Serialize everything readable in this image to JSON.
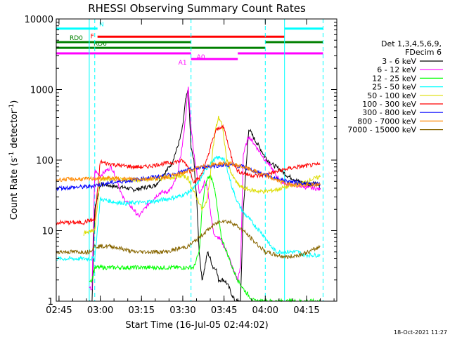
{
  "chart_data": {
    "type": "line",
    "title": "RHESSI Observing Summary Count Rates",
    "xlabel": "Start Time (16-Jul-05 02:44:02)",
    "ylabel_main": "Count Rate (s",
    "ylabel_sup1": "-1",
    "ylabel_mid": " detector",
    "ylabel_sup2": "-1",
    "ylabel_end": ")",
    "x_unit": "minutes since 02:44:02",
    "xlim": [
      0,
      102
    ],
    "ylim": [
      1,
      10000
    ],
    "yscale": "log",
    "x_ticks": [
      {
        "label": "02:45",
        "t": 1
      },
      {
        "label": "03:00",
        "t": 16
      },
      {
        "label": "03:15",
        "t": 31
      },
      {
        "label": "03:30",
        "t": 46
      },
      {
        "label": "03:45",
        "t": 61
      },
      {
        "label": "04:00",
        "t": 76
      },
      {
        "label": "04:15",
        "t": 91
      }
    ],
    "y_ticks": [
      {
        "label": "1",
        "v": 1
      },
      {
        "label": "10",
        "v": 10
      },
      {
        "label": "100",
        "v": 100
      },
      {
        "label": "1000",
        "v": 1000
      },
      {
        "label": "10000",
        "v": 10000
      }
    ],
    "legend_header": [
      "Det 1,3,4,5,6,9,",
      "FDecim 6"
    ],
    "series": [
      {
        "name": "3 - 6 keV",
        "color": "#000000",
        "x": [
          12,
          13,
          14,
          16,
          18,
          20,
          22,
          24,
          26,
          28,
          30,
          32,
          34,
          36,
          38,
          40,
          42,
          44,
          45,
          46,
          47,
          48,
          49,
          50,
          51,
          52,
          53,
          54,
          55,
          56,
          57,
          58,
          59,
          60,
          61,
          62,
          63,
          64,
          65,
          66,
          67,
          68,
          70,
          72,
          74,
          76,
          78,
          80,
          82,
          84,
          86,
          88,
          90,
          92,
          93,
          94,
          95,
          96
        ],
        "y": [
          1,
          1,
          20,
          45,
          45,
          43,
          42,
          41,
          40,
          38,
          39,
          41,
          42,
          44,
          55,
          70,
          90,
          150,
          200,
          300,
          700,
          1000,
          150,
          100,
          30,
          5,
          2,
          3,
          5,
          4,
          3,
          3,
          2,
          2,
          2,
          1.8,
          1.5,
          1.2,
          1,
          1,
          1,
          20,
          280,
          200,
          150,
          110,
          90,
          80,
          70,
          60,
          55,
          50,
          48,
          45,
          45,
          50,
          45,
          40
        ]
      },
      {
        "name": "6 - 12 keV",
        "color": "#ff00ff",
        "x": [
          12,
          13,
          14,
          16,
          18,
          20,
          22,
          24,
          26,
          28,
          30,
          32,
          34,
          36,
          38,
          40,
          42,
          44,
          45,
          46,
          47,
          48,
          49,
          50,
          51,
          52,
          53,
          54,
          55,
          56,
          57,
          58,
          59,
          60,
          61,
          62,
          63,
          64,
          65,
          66,
          67,
          68,
          70,
          72,
          74,
          76,
          78,
          80,
          82,
          84,
          86,
          88,
          90,
          92,
          94,
          96
        ],
        "y": [
          1.5,
          1.5,
          70,
          60,
          70,
          80,
          55,
          30,
          25,
          20,
          16,
          20,
          25,
          30,
          35,
          35,
          40,
          60,
          100,
          180,
          400,
          1100,
          300,
          130,
          70,
          35,
          40,
          50,
          40,
          20,
          10,
          8,
          8,
          7,
          6,
          5,
          4,
          3,
          2.5,
          2,
          3,
          120,
          220,
          170,
          130,
          100,
          80,
          60,
          50,
          45,
          45,
          43,
          42,
          40,
          40,
          38
        ]
      },
      {
        "name": "12 - 25 keV",
        "color": "#00ff00",
        "x": [
          12,
          13,
          14,
          16,
          18,
          20,
          22,
          24,
          26,
          28,
          30,
          32,
          34,
          36,
          38,
          40,
          42,
          44,
          46,
          48,
          50,
          52,
          53,
          54,
          55,
          56,
          57,
          58,
          59,
          60,
          62,
          64,
          66,
          68,
          70,
          72,
          74,
          76,
          78,
          80,
          82,
          84,
          86,
          88,
          90,
          92,
          94,
          96
        ],
        "y": [
          2,
          2,
          3,
          3,
          3,
          3,
          3,
          3,
          3,
          3,
          3,
          3,
          3,
          3,
          3,
          3,
          3,
          3,
          3,
          3,
          3,
          5,
          20,
          40,
          55,
          60,
          50,
          30,
          15,
          8,
          5,
          3,
          2,
          1.5,
          1.2,
          1,
          1,
          1,
          1,
          1,
          1,
          1,
          1,
          1,
          1,
          1,
          1,
          1
        ]
      },
      {
        "name": "25 - 50 keV",
        "color": "#00ffff",
        "x": [
          0,
          10,
          12,
          14,
          16,
          18,
          20,
          22,
          24,
          26,
          28,
          30,
          32,
          34,
          36,
          38,
          40,
          42,
          44,
          46,
          48,
          50,
          52,
          54,
          56,
          58,
          60,
          61,
          62,
          64,
          66,
          68,
          70,
          72,
          74,
          76,
          78,
          80,
          82,
          84,
          86,
          88,
          90,
          92,
          94,
          96
        ],
        "y": [
          4,
          4,
          4,
          4,
          28,
          27,
          26,
          25,
          25,
          24,
          25,
          25,
          25,
          26,
          26,
          27,
          28,
          29,
          30,
          32,
          35,
          40,
          50,
          70,
          90,
          105,
          110,
          100,
          80,
          40,
          25,
          18,
          15,
          12,
          10,
          8,
          6,
          5,
          5,
          5,
          5,
          5,
          4.5,
          4.5,
          4.5,
          4.5
        ]
      },
      {
        "name": "50 - 100 keV",
        "color": "#dddd00",
        "x": [
          10,
          12,
          14,
          16,
          18,
          20,
          22,
          24,
          26,
          28,
          30,
          32,
          34,
          36,
          38,
          40,
          42,
          44,
          46,
          48,
          50,
          52,
          53,
          54,
          55,
          56,
          57,
          58,
          59,
          60,
          61,
          62,
          64,
          66,
          68,
          70,
          72,
          74,
          76,
          78,
          80,
          82,
          84,
          86,
          88,
          90,
          92,
          94,
          96
        ],
        "y": [
          9,
          10,
          10,
          55,
          55,
          54,
          54,
          53,
          53,
          52,
          52,
          52,
          53,
          54,
          55,
          56,
          57,
          58,
          60,
          55,
          35,
          25,
          20,
          22,
          30,
          60,
          150,
          280,
          400,
          350,
          200,
          100,
          60,
          45,
          40,
          38,
          37,
          36,
          36,
          37,
          38,
          40,
          42,
          44,
          46,
          48,
          52,
          55,
          58
        ]
      },
      {
        "name": "100 - 300 keV",
        "color": "#ff0000",
        "x": [
          0,
          10,
          12,
          14,
          16,
          18,
          20,
          22,
          24,
          26,
          28,
          30,
          32,
          34,
          36,
          38,
          40,
          42,
          44,
          46,
          48,
          50,
          52,
          54,
          56,
          58,
          60,
          61,
          62,
          64,
          66,
          68,
          70,
          72,
          74,
          76,
          78,
          80,
          82,
          84,
          86,
          88,
          90,
          92,
          94,
          96
        ],
        "y": [
          13,
          13,
          14,
          14,
          95,
          90,
          88,
          85,
          83,
          82,
          80,
          80,
          80,
          82,
          85,
          88,
          90,
          92,
          95,
          98,
          80,
          50,
          55,
          80,
          150,
          260,
          300,
          280,
          200,
          100,
          70,
          65,
          62,
          60,
          60,
          62,
          65,
          68,
          72,
          75,
          78,
          80,
          82,
          84,
          85,
          87
        ]
      },
      {
        "name": "300 - 800 keV",
        "color": "#0000ff",
        "x": [
          0,
          12,
          14,
          16,
          20,
          24,
          28,
          32,
          36,
          40,
          44,
          48,
          52,
          56,
          60,
          64,
          68,
          72,
          76,
          80,
          84,
          88,
          92,
          96
        ],
        "y": [
          40,
          42,
          44,
          45,
          48,
          50,
          52,
          55,
          58,
          60,
          65,
          72,
          78,
          82,
          85,
          85,
          80,
          70,
          62,
          55,
          50,
          48,
          46,
          45
        ]
      },
      {
        "name": "800 - 7000 keV",
        "color": "#ff8800",
        "x": [
          0,
          12,
          14,
          16,
          20,
          24,
          28,
          32,
          36,
          40,
          44,
          48,
          52,
          56,
          60,
          64,
          68,
          72,
          76,
          80,
          84,
          88,
          92,
          96
        ],
        "y": [
          53,
          54,
          55,
          55,
          55,
          54,
          54,
          54,
          55,
          58,
          62,
          70,
          78,
          85,
          90,
          88,
          80,
          70,
          60,
          52,
          46,
          44,
          44,
          45
        ]
      },
      {
        "name": "7000 - 15000 keV",
        "color": "#886600",
        "x": [
          0,
          12,
          14,
          16,
          20,
          24,
          28,
          32,
          36,
          40,
          44,
          48,
          52,
          56,
          60,
          64,
          68,
          72,
          76,
          80,
          84,
          88,
          92,
          96
        ],
        "y": [
          5,
          5,
          6,
          6,
          6,
          5.5,
          5,
          5,
          5,
          5,
          5.5,
          6,
          8,
          11,
          14,
          13,
          10,
          7,
          5,
          4.5,
          4.2,
          4.5,
          5,
          6
        ]
      }
    ],
    "mode_bars": [
      {
        "label": "N",
        "color": "#00ffff",
        "level": 7300,
        "segments": [
          [
            0,
            15
          ],
          [
            83,
            97
          ]
        ]
      },
      {
        "label": "F",
        "color": "#ff0000",
        "level": 5600,
        "segments": [
          [
            15,
            83
          ]
        ]
      },
      {
        "label": "RD0",
        "color": "#008000",
        "level": 4700,
        "segments": [
          [
            0,
            49
          ],
          [
            76,
            97
          ]
        ]
      },
      {
        "label": "RD6",
        "color": "#008000",
        "level": 3900,
        "segments": [
          [
            0,
            76
          ]
        ]
      },
      {
        "label": "A0",
        "color": "#ff00ff",
        "level": 3250,
        "segments": [
          [
            0,
            49
          ],
          [
            66,
            97
          ]
        ]
      },
      {
        "label": "A1",
        "color": "#ff00ff",
        "level": 2700,
        "segments": [
          [
            49,
            66
          ]
        ]
      }
    ],
    "event_lines": [
      {
        "t": 0,
        "style": "solid"
      },
      {
        "t": 12,
        "style": "solid"
      },
      {
        "t": 14,
        "style": "dashed"
      },
      {
        "t": 49,
        "style": "dashed"
      },
      {
        "t": 76,
        "style": "dashed"
      },
      {
        "t": 83,
        "style": "solid"
      },
      {
        "t": 97,
        "style": "dashed"
      }
    ],
    "grid": false,
    "legend_position": "right"
  },
  "footer": {
    "timestamp": "18-Oct-2021 11:27"
  },
  "colors": {
    "background": "#ffffff",
    "axis": "#000000",
    "event_line": "#00ffff"
  }
}
